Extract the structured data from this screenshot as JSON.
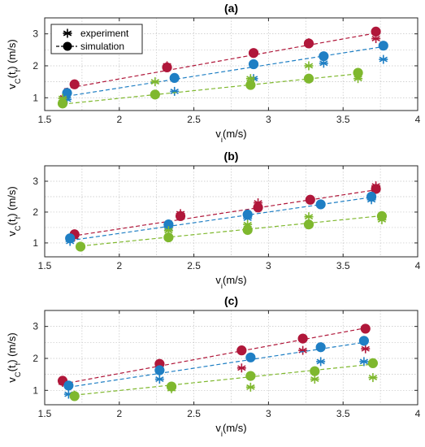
{
  "figure": {
    "background": "#ffffff"
  },
  "colors": {
    "red": "#b0173a",
    "blue": "#1f7fc4",
    "green": "#7fb82e"
  },
  "legend": {
    "experiment_label": "experiment",
    "simulation_label": "simulation",
    "experiment_icon": "asterisk-icon",
    "simulation_icon": "filled-circle-with-line-icon",
    "placement": "top-left",
    "panel": 0
  },
  "chart_data": [
    {
      "type": "scatter",
      "title": "(a)",
      "xlabel": "v_i(m/s)",
      "ylabel": "v_C(t_f) (m/s)",
      "xlim": [
        1.5,
        4
      ],
      "ylim": [
        0.6,
        3.5
      ],
      "xticks": [
        1.5,
        2,
        2.5,
        3,
        3.5,
        4
      ],
      "yticks": [
        1,
        2,
        3
      ],
      "grid": true,
      "series": [
        {
          "color": "red",
          "simulation": {
            "x": [
              1.7,
              2.32,
              2.9,
              3.27,
              3.72
            ],
            "y": [
              1.42,
              1.95,
              2.4,
              2.7,
              3.07
            ]
          },
          "experiment": {
            "x": [
              1.63,
              2.32,
              2.9,
              3.27,
              3.72
            ],
            "y": [
              1.0,
              2.0,
              2.4,
              2.72,
              2.85
            ]
          },
          "fit": {
            "x": [
              1.63,
              3.75
            ],
            "y": [
              1.28,
              3.05
            ]
          }
        },
        {
          "color": "blue",
          "simulation": {
            "x": [
              1.65,
              2.37,
              2.9,
              3.37,
              3.77
            ],
            "y": [
              1.15,
              1.62,
              2.05,
              2.3,
              2.63
            ]
          },
          "experiment": {
            "x": [
              1.65,
              2.37,
              2.9,
              3.37,
              3.77
            ],
            "y": [
              0.95,
              1.2,
              1.6,
              2.08,
              2.2
            ]
          },
          "fit": {
            "x": [
              1.65,
              3.77
            ],
            "y": [
              1.05,
              2.6
            ]
          }
        },
        {
          "color": "green",
          "simulation": {
            "x": [
              1.62,
              2.24,
              2.88,
              3.27,
              3.6
            ],
            "y": [
              0.82,
              1.1,
              1.4,
              1.6,
              1.78
            ]
          },
          "experiment": {
            "x": [
              1.62,
              2.24,
              2.88,
              3.27,
              3.6
            ],
            "y": [
              0.98,
              1.5,
              1.6,
              2.0,
              1.6
            ]
          },
          "fit": {
            "x": [
              1.62,
              3.6
            ],
            "y": [
              0.8,
              1.75
            ]
          }
        }
      ]
    },
    {
      "type": "scatter",
      "title": "(b)",
      "xlabel": "v_i(m/s)",
      "ylabel": "v_C(t_f) (m/s)",
      "xlim": [
        1.5,
        4
      ],
      "ylim": [
        0.55,
        3.5
      ],
      "xticks": [
        1.5,
        2,
        2.5,
        3,
        3.5,
        4
      ],
      "yticks": [
        1,
        2,
        3
      ],
      "grid": true,
      "series": [
        {
          "color": "red",
          "simulation": {
            "x": [
              1.7,
              2.41,
              2.93,
              3.28,
              3.72
            ],
            "y": [
              1.28,
              1.87,
              2.15,
              2.4,
              2.75
            ]
          },
          "experiment": {
            "x": [
              1.7,
              2.41,
              2.93,
              3.28,
              3.72
            ],
            "y": [
              1.2,
              1.95,
              2.3,
              2.4,
              2.85
            ]
          },
          "fit": {
            "x": [
              1.68,
              3.72
            ],
            "y": [
              1.22,
              2.72
            ]
          }
        },
        {
          "color": "blue",
          "simulation": {
            "x": [
              1.67,
              2.33,
              2.86,
              3.35,
              3.69
            ],
            "y": [
              1.15,
              1.6,
              1.92,
              2.25,
              2.5
            ]
          },
          "experiment": {
            "x": [
              1.67,
              2.33,
              2.86,
              3.35,
              3.69
            ],
            "y": [
              1.05,
              1.5,
              1.8,
              2.25,
              2.4
            ]
          },
          "fit": {
            "x": [
              1.67,
              3.69
            ],
            "y": [
              1.08,
              2.48
            ]
          }
        },
        {
          "color": "green",
          "simulation": {
            "x": [
              1.74,
              2.33,
              2.86,
              3.27,
              3.76
            ],
            "y": [
              0.88,
              1.18,
              1.42,
              1.6,
              1.87
            ]
          },
          "experiment": {
            "x": [
              1.74,
              2.33,
              2.86,
              3.27,
              3.76
            ],
            "y": [
              0.88,
              1.4,
              1.6,
              1.85,
              1.75
            ]
          },
          "fit": {
            "x": [
              1.74,
              3.76
            ],
            "y": [
              0.9,
              1.88
            ]
          }
        }
      ]
    },
    {
      "type": "scatter",
      "title": "(c)",
      "xlabel": "v_i(m/s)",
      "ylabel": "v_C(t_f) (m/s)",
      "xlim": [
        1.5,
        4
      ],
      "ylim": [
        0.55,
        3.5
      ],
      "xticks": [
        1.5,
        2,
        2.5,
        3,
        3.5,
        4
      ],
      "yticks": [
        1,
        2,
        3
      ],
      "grid": true,
      "series": [
        {
          "color": "red",
          "simulation": {
            "x": [
              1.62,
              2.27,
              2.82,
              3.23,
              3.65
            ],
            "y": [
              1.3,
              1.83,
              2.25,
              2.62,
              2.93
            ]
          },
          "experiment": {
            "x": [
              1.62,
              2.27,
              2.82,
              3.23,
              3.65
            ],
            "y": [
              1.25,
              1.78,
              1.7,
              2.25,
              2.3
            ]
          },
          "fit": {
            "x": [
              1.62,
              3.65
            ],
            "y": [
              1.2,
              2.95
            ]
          }
        },
        {
          "color": "blue",
          "simulation": {
            "x": [
              1.66,
              2.27,
              2.88,
              3.35,
              3.64
            ],
            "y": [
              1.15,
              1.63,
              2.03,
              2.35,
              2.55
            ]
          },
          "experiment": {
            "x": [
              1.66,
              2.27,
              2.88,
              3.35,
              3.64
            ],
            "y": [
              0.88,
              1.35,
              1.45,
              1.9,
              1.9
            ]
          },
          "fit": {
            "x": [
              1.66,
              3.64
            ],
            "y": [
              1.1,
              2.5
            ]
          }
        },
        {
          "color": "green",
          "simulation": {
            "x": [
              1.7,
              2.35,
              2.88,
              3.31,
              3.7
            ],
            "y": [
              0.82,
              1.12,
              1.45,
              1.6,
              1.85
            ]
          },
          "experiment": {
            "x": [
              1.7,
              2.35,
              2.88,
              3.31,
              3.7
            ],
            "y": [
              0.85,
              1.05,
              1.1,
              1.35,
              1.4
            ]
          },
          "fit": {
            "x": [
              1.7,
              3.7
            ],
            "y": [
              0.85,
              1.82
            ]
          }
        }
      ]
    }
  ]
}
